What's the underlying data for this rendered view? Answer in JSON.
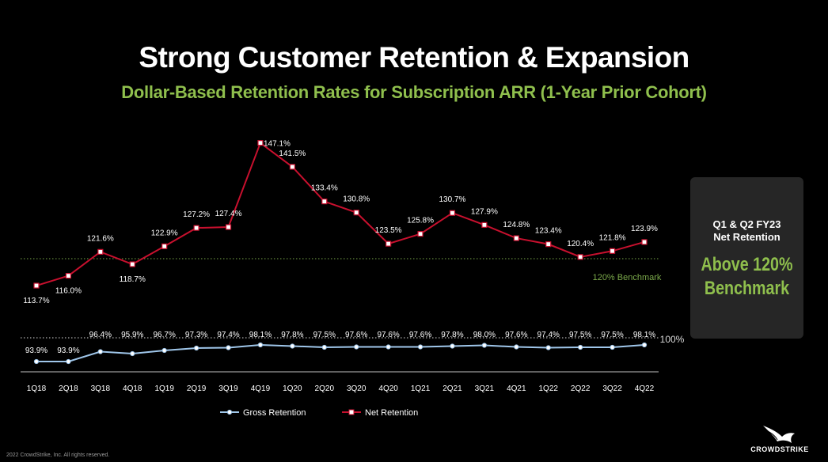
{
  "header": {
    "title": "Strong Customer Retention & Expansion",
    "subtitle": "Dollar-Based Retention Rates for Subscription ARR (1-Year Prior Cohort)"
  },
  "chart_data": {
    "type": "line",
    "categories": [
      "1Q18",
      "2Q18",
      "3Q18",
      "4Q18",
      "1Q19",
      "2Q19",
      "3Q19",
      "4Q19",
      "1Q20",
      "2Q20",
      "3Q20",
      "4Q20",
      "1Q21",
      "2Q21",
      "3Q21",
      "4Q21",
      "1Q22",
      "2Q22",
      "3Q22",
      "4Q22"
    ],
    "series": [
      {
        "name": "Net Retention",
        "color": "#c8102e",
        "marker": "square",
        "values": [
          113.7,
          116.0,
          121.6,
          118.7,
          122.9,
          127.2,
          127.4,
          147.1,
          141.5,
          133.4,
          130.8,
          123.5,
          125.8,
          130.7,
          127.9,
          124.8,
          123.4,
          120.4,
          121.8,
          123.9
        ],
        "labels": [
          "113.7%",
          "116.0%",
          "121.6%",
          "118.7%",
          "122.9%",
          "127.2%",
          "127.4%",
          "147.1%",
          "141.5%",
          "133.4%",
          "130.8%",
          "123.5%",
          "125.8%",
          "130.7%",
          "127.9%",
          "124.8%",
          "123.4%",
          "120.4%",
          "121.8%",
          "123.9%"
        ]
      },
      {
        "name": "Gross Retention",
        "color": "#9fc6ea",
        "marker": "circle",
        "values": [
          93.9,
          93.9,
          96.4,
          95.9,
          96.7,
          97.3,
          97.4,
          98.1,
          97.8,
          97.5,
          97.6,
          97.6,
          97.6,
          97.8,
          98.0,
          97.6,
          97.4,
          97.5,
          97.5,
          98.1
        ],
        "labels": [
          "93.9%",
          "93.9%",
          "96.4%",
          "95.9%",
          "96.7%",
          "97.3%",
          "97.4%",
          "98.1%",
          "97.8%",
          "97.5%",
          "97.6%",
          "97.6%",
          "97.6%",
          "97.8%",
          "98.0%",
          "97.6%",
          "97.4%",
          "97.5%",
          "97.5%",
          "98.1%"
        ]
      }
    ],
    "reference_lines": [
      {
        "value": 120,
        "label": "120% Benchmark",
        "color": "#7aa84a",
        "style": "dotted"
      },
      {
        "value": 100,
        "label": "100%",
        "color": "#d9d9d9",
        "style": "dotted"
      }
    ],
    "legend": {
      "placement": "bottom-center"
    }
  },
  "panel": {
    "line1": "Q1 & Q2 FY23",
    "line2": "Net Retention",
    "big1": "Above 120%",
    "big2": "Benchmark"
  },
  "footer": {
    "copyright": "2022 CrowdStrike, Inc. All rights reserved."
  },
  "logo": {
    "text": "CROWDSTRIKE"
  },
  "colors": {
    "accent_green": "#8fbf4d",
    "benchmark_green": "#7aa84a",
    "net_red": "#c8102e",
    "gross_blue": "#9fc6ea",
    "panel_bg": "#262626"
  }
}
